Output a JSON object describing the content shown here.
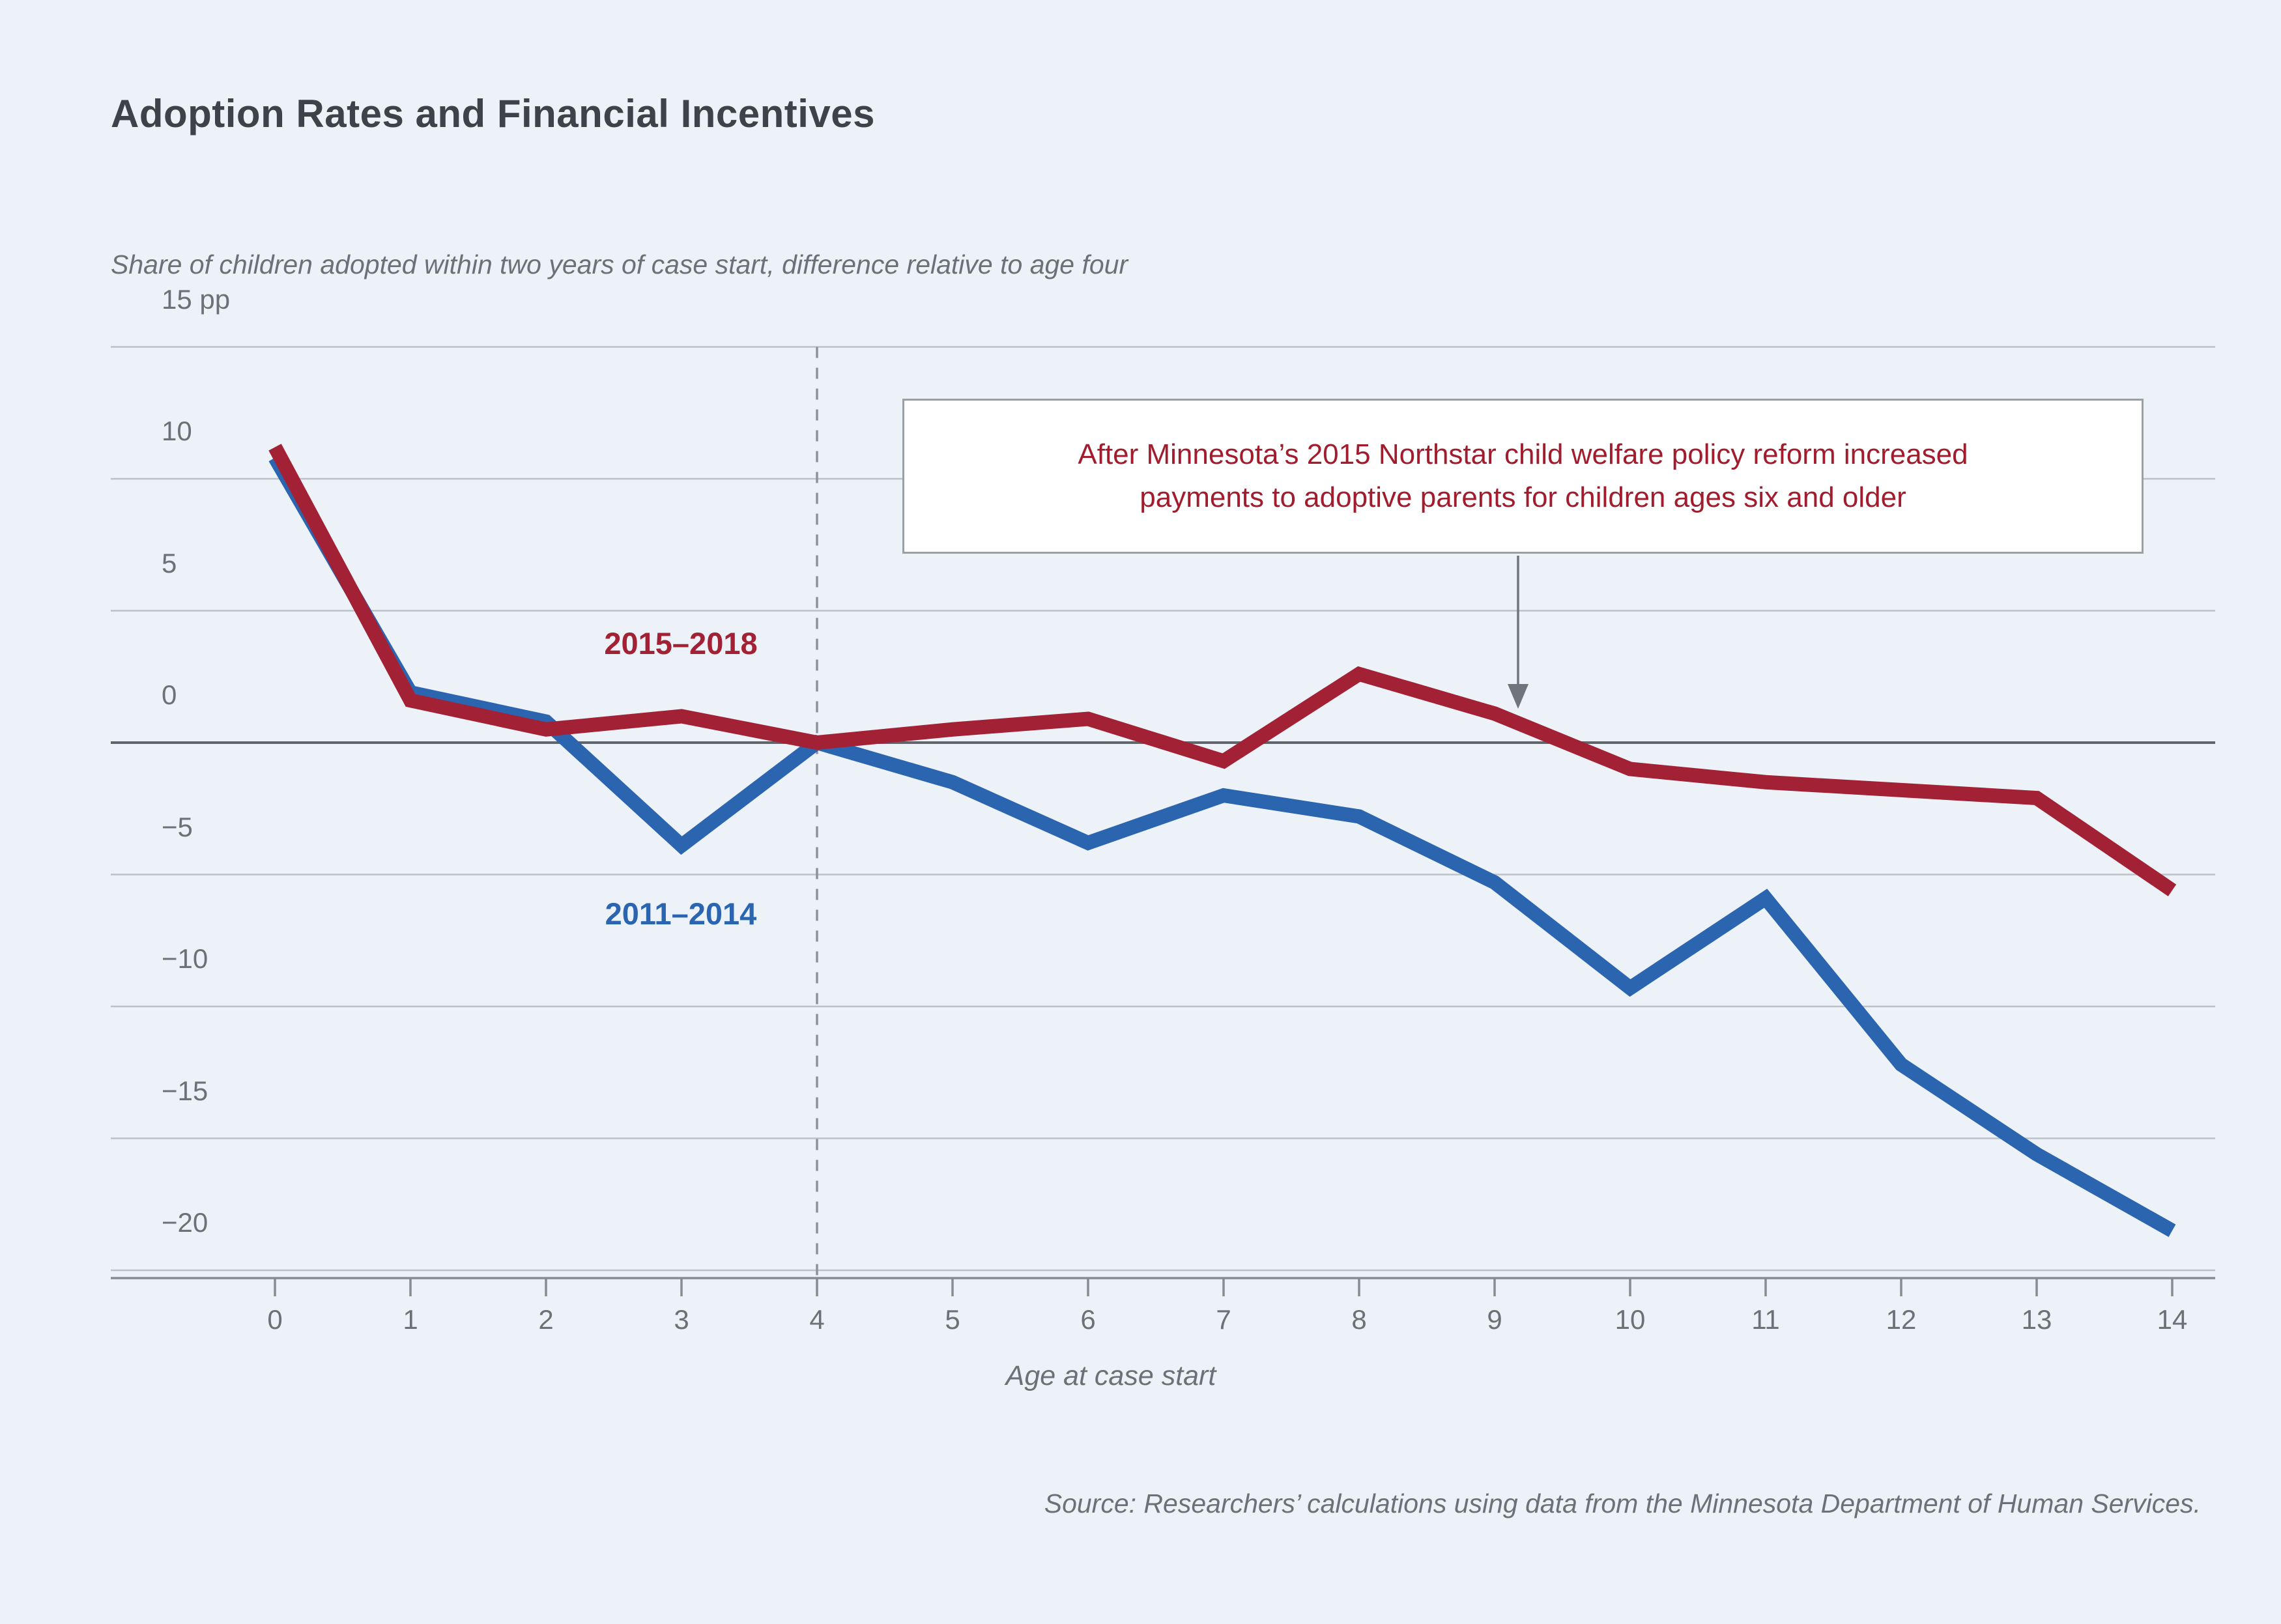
{
  "title": "Adoption Rates and Financial Incentives",
  "subtitle": "Share of children adopted within two years of case start, difference relative to age four",
  "annotation": {
    "line1": "After Minnesota’s 2015 Northstar child welfare policy reform increased",
    "line2": "payments to adoptive parents for children ages six and older"
  },
  "legend": {
    "series_recent": "2015–2018",
    "series_early": "2011–2014"
  },
  "source": "Source: Researchers’ calculations using data from the Minnesota Department of Human Services.",
  "colors": {
    "background": "#edf2f8",
    "series_recent": "#a32134",
    "series_early": "#2b65b0",
    "gridline": "#bcc2c8",
    "zero_line": "#5f656b",
    "axis_line": "#878c91",
    "dashed_reference_line": "#8d9399",
    "arrow": "#6f757b",
    "annotation_text": "#a11d2d",
    "text_gray": "#6b7177",
    "title_text": "#3e4347"
  },
  "chart_data": {
    "type": "line",
    "title": "Adoption Rates and Financial Incentives",
    "xlabel": "Age at case start",
    "ylabel": "Share of children adopted within two years of case start, difference relative to age four (pp)",
    "x": [
      0,
      1,
      2,
      3,
      4,
      5,
      6,
      7,
      8,
      9,
      10,
      11,
      12,
      13,
      14
    ],
    "series": [
      {
        "name": "2015–2018",
        "color": "#a32134",
        "values": [
          11.2,
          1.6,
          0.5,
          1.0,
          0,
          0.5,
          0.9,
          -0.7,
          2.6,
          1.1,
          -1.0,
          -1.5,
          -1.8,
          -2.1,
          -5.6
        ]
      },
      {
        "name": "2011–2014",
        "color": "#2b65b0",
        "values": [
          10.8,
          1.9,
          0.8,
          -3.9,
          0,
          -1.5,
          -3.8,
          -2.0,
          -2.8,
          -5.3,
          -9.3,
          -5.9,
          -12.2,
          -15.6,
          -18.5
        ]
      }
    ],
    "ylim": [
      -22.5,
      15
    ],
    "grid": true,
    "reference_line_x": 4,
    "legend_position": "inline-labels",
    "y_axis": {
      "ticks": [
        {
          "value": 15,
          "label": "15 pp"
        },
        {
          "value": 10,
          "label": "10"
        },
        {
          "value": 5,
          "label": "5"
        },
        {
          "value": 0,
          "label": "0"
        },
        {
          "value": -5,
          "label": "−5"
        },
        {
          "value": -10,
          "label": "−10"
        },
        {
          "value": -15,
          "label": "−15"
        },
        {
          "value": -20,
          "label": "−20"
        }
      ]
    },
    "x_axis": {
      "label": "Age at case start",
      "ticks": [
        {
          "value": 0,
          "label": "0"
        },
        {
          "value": 1,
          "label": "1"
        },
        {
          "value": 2,
          "label": "2"
        },
        {
          "value": 3,
          "label": "3"
        },
        {
          "value": 4,
          "label": "4"
        },
        {
          "value": 5,
          "label": "5"
        },
        {
          "value": 6,
          "label": "6"
        },
        {
          "value": 7,
          "label": "7"
        },
        {
          "value": 8,
          "label": "8"
        },
        {
          "value": 9,
          "label": "9"
        },
        {
          "value": 10,
          "label": "10"
        },
        {
          "value": 11,
          "label": "11"
        },
        {
          "value": 12,
          "label": "12"
        },
        {
          "value": 13,
          "label": "13"
        },
        {
          "value": 14,
          "label": "14"
        }
      ]
    }
  }
}
